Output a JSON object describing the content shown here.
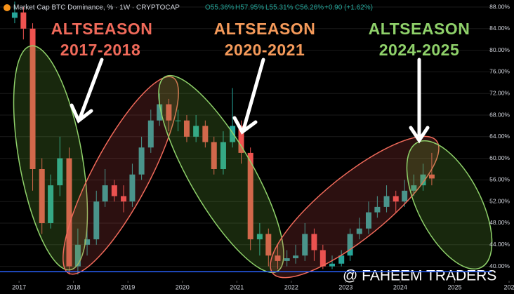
{
  "header": {
    "title": "Market Cap BTC Dominance, % · 1W · CRYPTOCAP",
    "open": "O55.36%",
    "high": "H57.95%",
    "low": "L55.31%",
    "close": "C56.26%",
    "change": "+0.90 (+1.62%)"
  },
  "annotations": [
    {
      "line1": "ALTSEASON",
      "line2": "2017-2018"
    },
    {
      "line1": "ALTSEASON",
      "line2": "2020-2021"
    },
    {
      "line1": "ALTSEASON",
      "line2": "2024-2025"
    }
  ],
  "watermark": "@ FAHEEM TRADERS",
  "chart_data": {
    "type": "candlestick",
    "x": [
      2016.92,
      2017.08,
      2017.25,
      2017.42,
      2017.58,
      2017.75,
      2017.92,
      2018.08,
      2018.25,
      2018.42,
      2018.58,
      2018.75,
      2018.92,
      2019.08,
      2019.25,
      2019.42,
      2019.58,
      2019.75,
      2019.92,
      2020.08,
      2020.25,
      2020.42,
      2020.58,
      2020.75,
      2020.92,
      2021.08,
      2021.25,
      2021.42,
      2021.58,
      2021.75,
      2021.92,
      2022.08,
      2022.25,
      2022.42,
      2022.58,
      2022.75,
      2022.92,
      2023.08,
      2023.25,
      2023.42,
      2023.58,
      2023.75,
      2023.92,
      2024.08,
      2024.25,
      2024.42,
      2024.58
    ],
    "open": [
      86,
      87,
      84,
      58,
      48,
      55,
      60,
      40,
      44,
      45,
      52,
      55,
      53,
      52,
      57,
      62,
      67,
      70,
      67,
      67,
      64,
      66,
      63,
      58,
      63,
      66,
      61,
      45,
      46,
      42,
      41,
      41.5,
      42,
      46,
      43,
      40,
      40.5,
      42,
      46,
      47,
      50,
      51,
      53,
      52,
      54,
      55,
      57
    ],
    "high": [
      89,
      88,
      85,
      60,
      57,
      64,
      62,
      47,
      48,
      54,
      58,
      56,
      55,
      59,
      64,
      69,
      72,
      71,
      69,
      68,
      68,
      67,
      64,
      65,
      73,
      67,
      62,
      48,
      47,
      44,
      43,
      44,
      48,
      47,
      44,
      42,
      43,
      47,
      49,
      52,
      53,
      55,
      54,
      56,
      57,
      59,
      61
    ],
    "low": [
      85,
      82,
      54,
      46,
      47,
      53,
      38.5,
      38.5,
      42,
      44,
      51,
      52,
      50,
      51,
      56,
      61,
      66,
      65,
      65,
      63,
      63,
      62,
      57,
      57,
      62,
      59,
      43,
      42,
      40,
      39.5,
      40,
      40.5,
      41,
      41,
      39.5,
      39.5,
      40,
      41,
      45,
      46,
      49,
      50,
      50,
      51,
      53,
      54,
      55
    ],
    "close": [
      87,
      84,
      58,
      48,
      55,
      60,
      40,
      44,
      45,
      52,
      55,
      53,
      52,
      57,
      62,
      67,
      70,
      67,
      67,
      64,
      66,
      63,
      58,
      63,
      66,
      61,
      45,
      46,
      42,
      41,
      41.5,
      42,
      46,
      43,
      40,
      40.5,
      42,
      46,
      47,
      50,
      51,
      53,
      52,
      54,
      55,
      57,
      56.26
    ],
    "up_color": "#26a69a",
    "down_color": "#ef5350",
    "xlim": [
      2016.65,
      2026.09
    ],
    "xticks": [
      2017,
      2018,
      2019,
      2020,
      2021,
      2022,
      2023,
      2024,
      2025,
      {
        "value": 2026,
        "label": "202"
      }
    ],
    "ylim": [
      37.35,
      89.3
    ],
    "yticks": [
      {
        "value": 40,
        "label": "40.00%"
      },
      {
        "value": 44,
        "label": "44.00%"
      },
      {
        "value": 48,
        "label": "48.00%"
      },
      {
        "value": 52,
        "label": "52.00%"
      },
      {
        "value": 56,
        "label": "56.00%"
      },
      {
        "value": 60,
        "label": "60.00%"
      },
      {
        "value": 64,
        "label": "64.00%"
      },
      {
        "value": 68,
        "label": "68.00%"
      },
      {
        "value": 72,
        "label": "72.00%"
      },
      {
        "value": 76,
        "label": "76.00%"
      },
      {
        "value": 80,
        "label": "80.00%"
      },
      {
        "value": 84,
        "label": "84.00%"
      },
      {
        "value": 88,
        "label": "88.00%"
      }
    ],
    "hline": 39.0,
    "hline_color": "#2962ff"
  }
}
